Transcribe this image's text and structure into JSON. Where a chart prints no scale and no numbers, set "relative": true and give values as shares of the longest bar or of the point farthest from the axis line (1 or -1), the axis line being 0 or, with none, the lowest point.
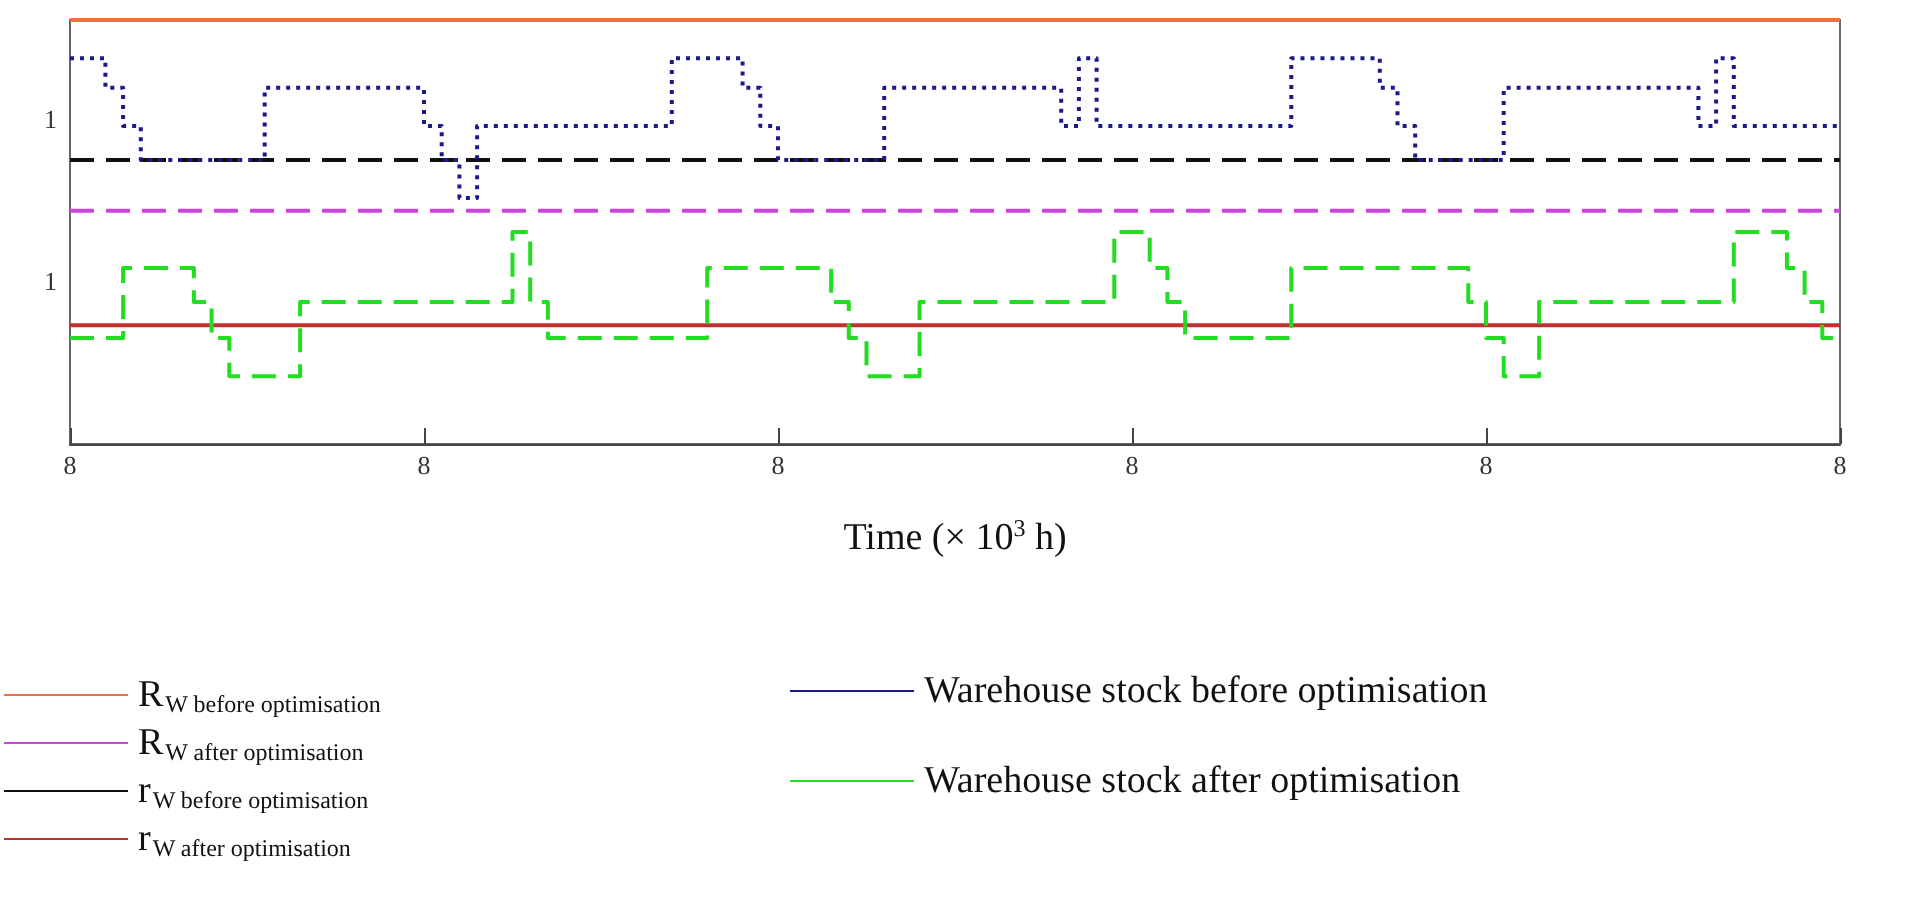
{
  "chart_data": {
    "type": "line",
    "relative": true,
    "xlabel": "Time (× 10$^{3}$ h)",
    "categories": [
      "8",
      null,
      null,
      null,
      null,
      null,
      null,
      null,
      null,
      null,
      null,
      null,
      null,
      null,
      null,
      null,
      null,
      null,
      null,
      null,
      "8",
      null,
      null,
      null,
      null,
      null,
      null,
      null,
      null,
      null,
      null,
      null,
      null,
      null,
      null,
      null,
      null,
      null,
      null,
      null,
      "8",
      null,
      null,
      null,
      null,
      null,
      null,
      null,
      null,
      null,
      null,
      null,
      null,
      null,
      null,
      null,
      null,
      null,
      null,
      null,
      "8",
      null,
      null,
      null,
      null,
      null,
      null,
      null,
      null,
      null,
      null,
      null,
      null,
      null,
      null,
      null,
      null,
      null,
      null,
      null,
      "8",
      null,
      null,
      null,
      null,
      null,
      null,
      null,
      null,
      null,
      null,
      null,
      null,
      null,
      null,
      null,
      null,
      null,
      null,
      null,
      "8"
    ],
    "annotations": [
      "1",
      "1"
    ],
    "legend": "bottom",
    "marker": "none",
    "series": [
      {
        "name": "R$_{W before optimisation}$",
        "color": "#f07040",
        "line_style": "solid",
        "values": [
          1,
          1,
          1,
          1,
          1,
          1,
          1,
          1,
          1,
          1,
          1,
          1,
          1,
          1,
          1,
          1,
          1,
          1,
          1,
          1,
          1,
          1,
          1,
          1,
          1,
          1,
          1,
          1,
          1,
          1,
          1,
          1,
          1,
          1,
          1,
          1,
          1,
          1,
          1,
          1,
          1,
          1,
          1,
          1,
          1,
          1,
          1,
          1,
          1,
          1,
          1,
          1,
          1,
          1,
          1,
          1,
          1,
          1,
          1,
          1,
          1,
          1,
          1,
          1,
          1,
          1,
          1,
          1,
          1,
          1,
          1,
          1,
          1,
          1,
          1,
          1,
          1,
          1,
          1,
          1,
          1,
          1,
          1,
          1,
          1,
          1,
          1,
          1,
          1,
          1,
          1,
          1,
          1,
          1,
          1,
          1,
          1,
          1,
          1,
          1,
          1
        ]
      },
      {
        "name": "R$_{W after optimisation}$",
        "color": "#cc44dd",
        "line_style": "dashed",
        "values": [
          0.55,
          0.55,
          0.55,
          0.55,
          0.55,
          0.55,
          0.55,
          0.55,
          0.55,
          0.55,
          0.55,
          0.55,
          0.55,
          0.55,
          0.55,
          0.55,
          0.55,
          0.55,
          0.55,
          0.55,
          0.55,
          0.55,
          0.55,
          0.55,
          0.55,
          0.55,
          0.55,
          0.55,
          0.55,
          0.55,
          0.55,
          0.55,
          0.55,
          0.55,
          0.55,
          0.55,
          0.55,
          0.55,
          0.55,
          0.55,
          0.55,
          0.55,
          0.55,
          0.55,
          0.55,
          0.55,
          0.55,
          0.55,
          0.55,
          0.55,
          0.55,
          0.55,
          0.55,
          0.55,
          0.55,
          0.55,
          0.55,
          0.55,
          0.55,
          0.55,
          0.55,
          0.55,
          0.55,
          0.55,
          0.55,
          0.55,
          0.55,
          0.55,
          0.55,
          0.55,
          0.55,
          0.55,
          0.55,
          0.55,
          0.55,
          0.55,
          0.55,
          0.55,
          0.55,
          0.55,
          0.55,
          0.55,
          0.55,
          0.55,
          0.55,
          0.55,
          0.55,
          0.55,
          0.55,
          0.55,
          0.55,
          0.55,
          0.55,
          0.55,
          0.55,
          0.55,
          0.55,
          0.55,
          0.55,
          0.55,
          0.55
        ]
      },
      {
        "name": "r$_{W before optimisation}$",
        "color": "#111111",
        "line_style": "dashed",
        "values": [
          0.67,
          0.67,
          0.67,
          0.67,
          0.67,
          0.67,
          0.67,
          0.67,
          0.67,
          0.67,
          0.67,
          0.67,
          0.67,
          0.67,
          0.67,
          0.67,
          0.67,
          0.67,
          0.67,
          0.67,
          0.67,
          0.67,
          0.67,
          0.67,
          0.67,
          0.67,
          0.67,
          0.67,
          0.67,
          0.67,
          0.67,
          0.67,
          0.67,
          0.67,
          0.67,
          0.67,
          0.67,
          0.67,
          0.67,
          0.67,
          0.67,
          0.67,
          0.67,
          0.67,
          0.67,
          0.67,
          0.67,
          0.67,
          0.67,
          0.67,
          0.67,
          0.67,
          0.67,
          0.67,
          0.67,
          0.67,
          0.67,
          0.67,
          0.67,
          0.67,
          0.67,
          0.67,
          0.67,
          0.67,
          0.67,
          0.67,
          0.67,
          0.67,
          0.67,
          0.67,
          0.67,
          0.67,
          0.67,
          0.67,
          0.67,
          0.67,
          0.67,
          0.67,
          0.67,
          0.67,
          0.67,
          0.67,
          0.67,
          0.67,
          0.67,
          0.67,
          0.67,
          0.67,
          0.67,
          0.67,
          0.67,
          0.67,
          0.67,
          0.67,
          0.67,
          0.67,
          0.67,
          0.67,
          0.67,
          0.67,
          0.67
        ]
      },
      {
        "name": "r$_{W after optimisation}$",
        "color": "#c03030",
        "line_style": "solid",
        "values": [
          0.28,
          0.28,
          0.28,
          0.28,
          0.28,
          0.28,
          0.28,
          0.28,
          0.28,
          0.28,
          0.28,
          0.28,
          0.28,
          0.28,
          0.28,
          0.28,
          0.28,
          0.28,
          0.28,
          0.28,
          0.28,
          0.28,
          0.28,
          0.28,
          0.28,
          0.28,
          0.28,
          0.28,
          0.28,
          0.28,
          0.28,
          0.28,
          0.28,
          0.28,
          0.28,
          0.28,
          0.28,
          0.28,
          0.28,
          0.28,
          0.28,
          0.28,
          0.28,
          0.28,
          0.28,
          0.28,
          0.28,
          0.28,
          0.28,
          0.28,
          0.28,
          0.28,
          0.28,
          0.28,
          0.28,
          0.28,
          0.28,
          0.28,
          0.28,
          0.28,
          0.28,
          0.28,
          0.28,
          0.28,
          0.28,
          0.28,
          0.28,
          0.28,
          0.28,
          0.28,
          0.28,
          0.28,
          0.28,
          0.28,
          0.28,
          0.28,
          0.28,
          0.28,
          0.28,
          0.28,
          0.28,
          0.28,
          0.28,
          0.28,
          0.28,
          0.28,
          0.28,
          0.28,
          0.28,
          0.28,
          0.28,
          0.28,
          0.28,
          0.28,
          0.28,
          0.28,
          0.28,
          0.28,
          0.28,
          0.28,
          0.28
        ]
      },
      {
        "name": "Warehouse stock before optimisation",
        "type": "step",
        "color": "#1a1a8c",
        "line_style": "dotted",
        "values": [
          0.91,
          0.91,
          0.84,
          0.75,
          0.67,
          0.67,
          0.67,
          0.67,
          0.67,
          0.67,
          0.67,
          0.84,
          0.84,
          0.84,
          0.84,
          0.84,
          0.84,
          0.84,
          0.84,
          0.84,
          0.75,
          0.67,
          0.58,
          0.75,
          0.75,
          0.75,
          0.75,
          0.75,
          0.75,
          0.75,
          0.75,
          0.75,
          0.75,
          0.75,
          0.91,
          0.91,
          0.91,
          0.91,
          0.84,
          0.75,
          0.67,
          0.67,
          0.67,
          0.67,
          0.67,
          0.67,
          0.84,
          0.84,
          0.84,
          0.84,
          0.84,
          0.84,
          0.84,
          0.84,
          0.84,
          0.84,
          0.75,
          0.91,
          0.75,
          0.75,
          0.75,
          0.75,
          0.75,
          0.75,
          0.75,
          0.75,
          0.75,
          0.75,
          0.75,
          0.91,
          0.91,
          0.91,
          0.91,
          0.91,
          0.84,
          0.75,
          0.67,
          0.67,
          0.67,
          0.67,
          0.67,
          0.84,
          0.84,
          0.84,
          0.84,
          0.84,
          0.84,
          0.84,
          0.84,
          0.84,
          0.84,
          0.84,
          0.75,
          0.91,
          0.75,
          0.75,
          0.75,
          0.75,
          0.75,
          0.75,
          0.75
        ]
      },
      {
        "name": "Warehouse stock after optimisation",
        "type": "step",
        "color": "#22dd22",
        "line_style": "dashed",
        "values": [
          0.25,
          0.25,
          0.25,
          0.415,
          0.415,
          0.415,
          0.415,
          0.335,
          0.25,
          0.16,
          0.16,
          0.16,
          0.16,
          0.335,
          0.335,
          0.335,
          0.335,
          0.335,
          0.335,
          0.335,
          0.335,
          0.335,
          0.335,
          0.335,
          0.335,
          0.5,
          0.335,
          0.25,
          0.25,
          0.25,
          0.25,
          0.25,
          0.25,
          0.25,
          0.25,
          0.25,
          0.415,
          0.415,
          0.415,
          0.415,
          0.415,
          0.415,
          0.415,
          0.335,
          0.25,
          0.16,
          0.16,
          0.16,
          0.335,
          0.335,
          0.335,
          0.335,
          0.335,
          0.335,
          0.335,
          0.335,
          0.335,
          0.335,
          0.335,
          0.5,
          0.5,
          0.415,
          0.335,
          0.25,
          0.25,
          0.25,
          0.25,
          0.25,
          0.25,
          0.415,
          0.415,
          0.415,
          0.415,
          0.415,
          0.415,
          0.415,
          0.415,
          0.415,
          0.415,
          0.335,
          0.25,
          0.16,
          0.16,
          0.335,
          0.335,
          0.335,
          0.335,
          0.335,
          0.335,
          0.335,
          0.335,
          0.335,
          0.335,
          0.335,
          0.5,
          0.5,
          0.5,
          0.415,
          0.335,
          0.25,
          0.25
        ]
      }
    ]
  }
}
